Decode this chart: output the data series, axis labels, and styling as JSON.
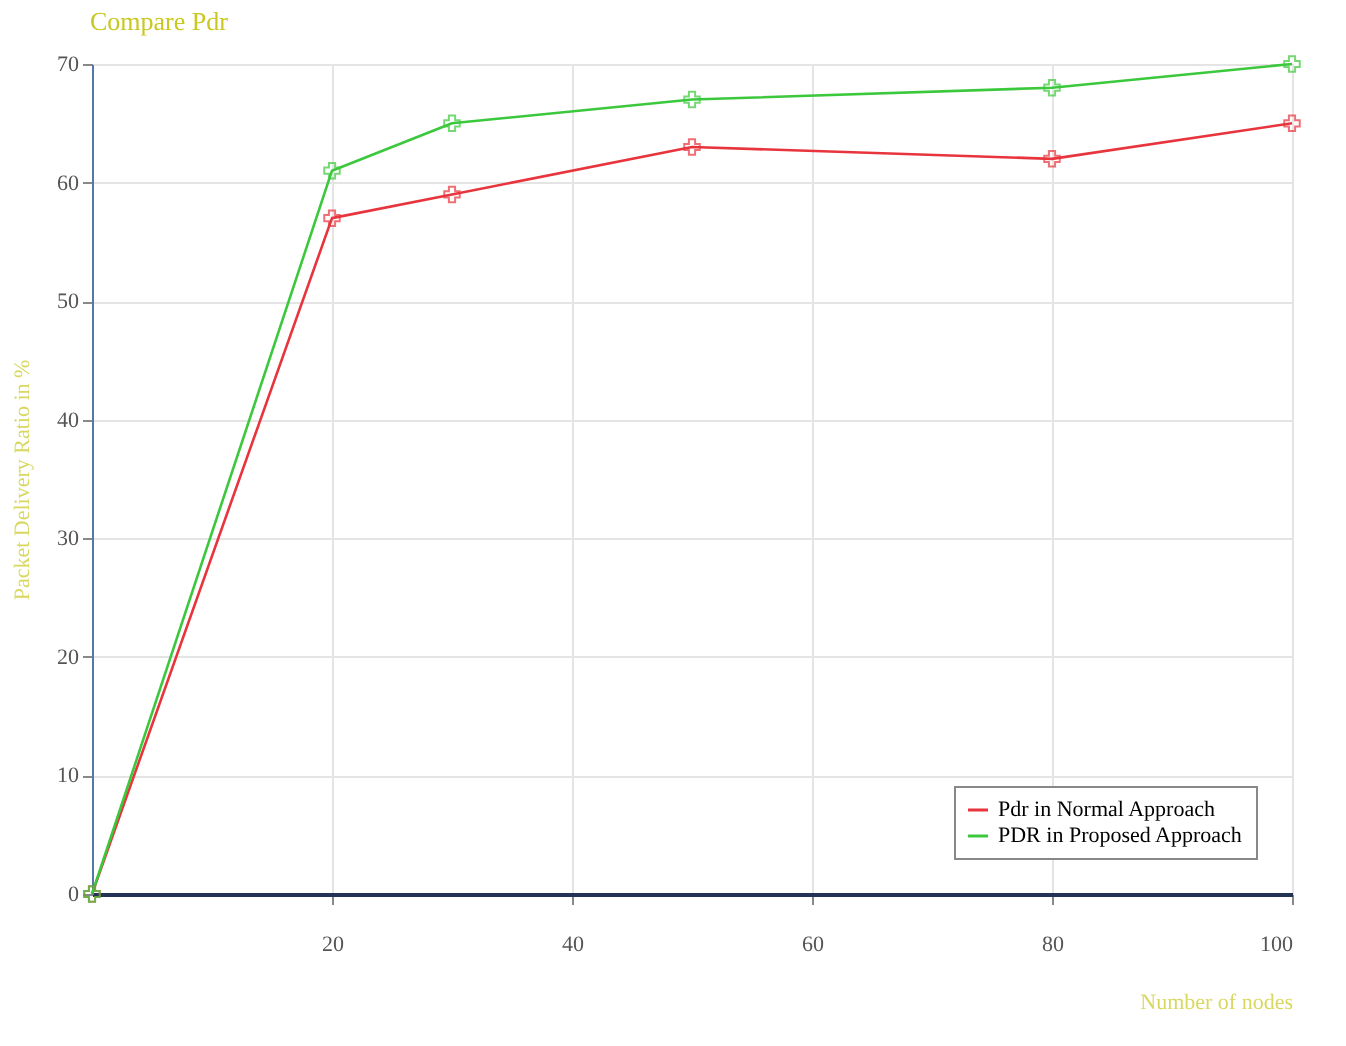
{
  "chart_data": {
    "type": "line",
    "title": "Compare Pdr",
    "xlabel": "Number of nodes",
    "ylabel": "Packet Delivery Ratio in %",
    "x": [
      0,
      20,
      30,
      50,
      80,
      100
    ],
    "series": [
      {
        "name": "Pdr in Normal Approach",
        "color": "#e8343c",
        "values": [
          0,
          57,
          59,
          63,
          62,
          65
        ]
      },
      {
        "name": "PDR in Proposed Approach",
        "color": "#3cc83c",
        "values": [
          0,
          61,
          65,
          67,
          68,
          70
        ]
      }
    ],
    "xlim": [
      0,
      100
    ],
    "xticks": [
      20,
      40,
      60,
      80,
      100
    ],
    "ylim": [
      0,
      70
    ],
    "yticks": [
      0,
      10,
      20,
      30,
      40,
      50,
      60,
      70
    ],
    "grid": true,
    "legend": "bottom right",
    "marker": "cross",
    "line_style": "solid"
  }
}
